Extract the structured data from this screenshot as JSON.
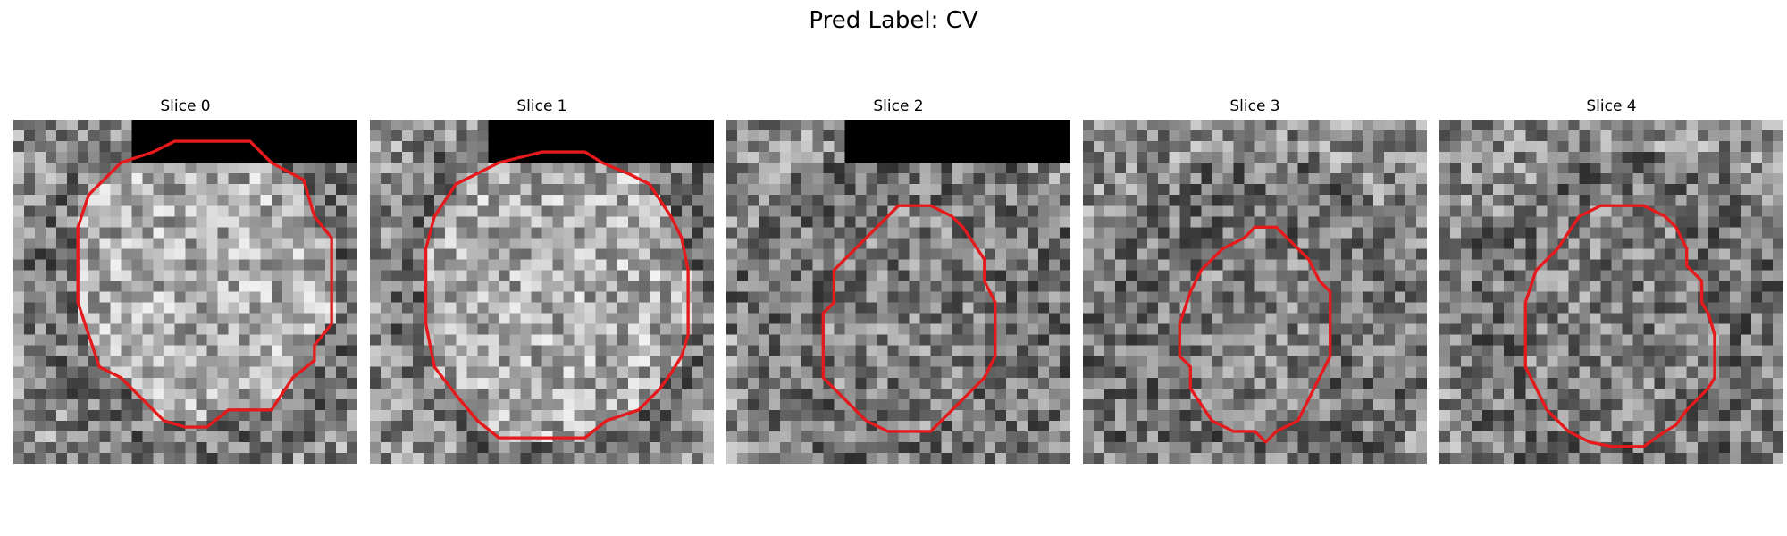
{
  "figure": {
    "title": "Pred Label: CV",
    "colormap": "gray",
    "contour_color": "#e41a1c"
  },
  "panels": [
    {
      "title": "Slice 0",
      "seed": 11,
      "mask": true,
      "outline": [
        [
          6.5,
          1.5
        ],
        [
          7.5,
          1.0
        ],
        [
          11,
          1.0
        ],
        [
          12,
          2.0
        ],
        [
          13.5,
          2.8
        ],
        [
          14,
          4.5
        ],
        [
          14.8,
          5.5
        ],
        [
          14.8,
          9.5
        ],
        [
          14,
          10.5
        ],
        [
          14,
          11.2
        ],
        [
          13,
          12.0
        ],
        [
          12,
          13.5
        ],
        [
          10,
          13.5
        ],
        [
          9,
          14.3
        ],
        [
          8,
          14.3
        ],
        [
          7,
          14.0
        ],
        [
          6,
          13.0
        ],
        [
          5,
          12.0
        ],
        [
          4,
          11.5
        ],
        [
          3.5,
          10.0
        ],
        [
          3,
          8.5
        ],
        [
          3,
          5.0
        ],
        [
          3.5,
          3.5
        ],
        [
          5,
          2.0
        ]
      ]
    },
    {
      "title": "Slice 1",
      "seed": 23,
      "mask": true,
      "outline": [
        [
          4,
          3.0
        ],
        [
          5,
          2.5
        ],
        [
          6,
          2.0
        ],
        [
          8,
          1.5
        ],
        [
          10,
          1.5
        ],
        [
          10.8,
          2.0
        ],
        [
          12,
          2.5
        ],
        [
          13,
          3.0
        ],
        [
          14,
          4.5
        ],
        [
          14.5,
          5.5
        ],
        [
          14.8,
          7.0
        ],
        [
          14.8,
          10.0
        ],
        [
          14.5,
          11.0
        ],
        [
          14,
          11.8
        ],
        [
          13.5,
          12.5
        ],
        [
          12.5,
          13.5
        ],
        [
          11,
          14.0
        ],
        [
          10,
          14.8
        ],
        [
          6,
          14.8
        ],
        [
          5,
          14.0
        ],
        [
          4,
          12.8
        ],
        [
          3,
          11.5
        ],
        [
          2.6,
          9.5
        ],
        [
          2.6,
          6.0
        ],
        [
          3,
          4.5
        ]
      ]
    },
    {
      "title": "Slice 2",
      "seed": 37,
      "mask": true,
      "outline": [
        [
          7,
          5.0
        ],
        [
          8,
          4.0
        ],
        [
          9.5,
          4.0
        ],
        [
          10.5,
          4.5
        ],
        [
          11,
          5.0
        ],
        [
          12,
          6.5
        ],
        [
          12,
          7.5
        ],
        [
          12.5,
          8.5
        ],
        [
          12.5,
          11.0
        ],
        [
          12,
          12.0
        ],
        [
          11.5,
          12.5
        ],
        [
          10.5,
          13.5
        ],
        [
          9.5,
          14.5
        ],
        [
          7.5,
          14.5
        ],
        [
          6.5,
          14.0
        ],
        [
          5.5,
          13.0
        ],
        [
          4.5,
          12.0
        ],
        [
          4.5,
          9.0
        ],
        [
          5,
          8.5
        ],
        [
          5,
          7.0
        ],
        [
          5.5,
          6.5
        ]
      ]
    },
    {
      "title": "Slice 3",
      "seed": 51,
      "mask": false,
      "outline": [
        [
          8,
          5.0
        ],
        [
          9,
          5.0
        ],
        [
          10,
          6.0
        ],
        [
          10.5,
          6.5
        ],
        [
          11,
          7.5
        ],
        [
          11.5,
          8.0
        ],
        [
          11.5,
          11.0
        ],
        [
          11,
          12.0
        ],
        [
          10.5,
          13.0
        ],
        [
          10,
          14.0
        ],
        [
          9,
          14.5
        ],
        [
          8.5,
          15.0
        ],
        [
          8,
          14.5
        ],
        [
          7,
          14.5
        ],
        [
          6,
          14.0
        ],
        [
          5,
          12.5
        ],
        [
          5,
          11.5
        ],
        [
          4.5,
          11.0
        ],
        [
          4.5,
          9.5
        ],
        [
          5,
          8.0
        ],
        [
          5.5,
          7.0
        ],
        [
          6.5,
          6.0
        ],
        [
          7.5,
          5.5
        ]
      ]
    },
    {
      "title": "Slice 4",
      "seed": 64,
      "mask": false,
      "outline": [
        [
          6.5,
          4.5
        ],
        [
          7.5,
          4.0
        ],
        [
          9.5,
          4.0
        ],
        [
          10.5,
          4.5
        ],
        [
          11,
          5.0
        ],
        [
          11.5,
          6.0
        ],
        [
          11.5,
          6.8
        ],
        [
          12.2,
          7.5
        ],
        [
          12.2,
          8.5
        ],
        [
          12.5,
          9.0
        ],
        [
          12.8,
          10.0
        ],
        [
          12.8,
          12.0
        ],
        [
          12.5,
          12.5
        ],
        [
          12,
          13.0
        ],
        [
          11.5,
          13.5
        ],
        [
          11,
          14.2
        ],
        [
          10.5,
          14.5
        ],
        [
          9.5,
          15.2
        ],
        [
          8,
          15.2
        ],
        [
          7,
          15.0
        ],
        [
          6,
          14.5
        ],
        [
          5.5,
          14.0
        ],
        [
          5,
          13.5
        ],
        [
          4.5,
          12.5
        ],
        [
          4,
          11.5
        ],
        [
          4,
          8.5
        ],
        [
          4.5,
          7.0
        ],
        [
          5.5,
          6.0
        ]
      ]
    }
  ]
}
